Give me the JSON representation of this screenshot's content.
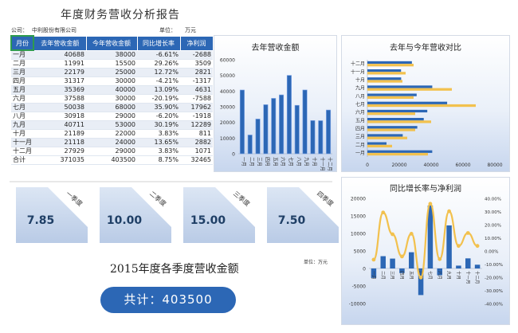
{
  "report": {
    "title": "年度财务营收分析报告",
    "company_label": "公司：",
    "company_name": "中利股份有限公司",
    "unit_label": "单位：",
    "unit_value": "万元"
  },
  "table": {
    "headers": [
      "月份",
      "去年营收金额",
      "今年营收金额",
      "同比增长率",
      "净利润"
    ],
    "rows": [
      [
        "一月",
        "40688",
        "38000",
        "-6.61%",
        "-2688"
      ],
      [
        "二月",
        "11991",
        "15500",
        "29.26%",
        "3509"
      ],
      [
        "三月",
        "22179",
        "25000",
        "12.72%",
        "2821"
      ],
      [
        "四月",
        "31317",
        "30000",
        "-4.21%",
        "-1317"
      ],
      [
        "五月",
        "35369",
        "40000",
        "13.09%",
        "4631"
      ],
      [
        "六月",
        "37588",
        "30000",
        "-20.19%",
        "-7588"
      ],
      [
        "七月",
        "50038",
        "68000",
        "35.90%",
        "17962"
      ],
      [
        "八月",
        "30918",
        "29000",
        "-6.20%",
        "-1918"
      ],
      [
        "九月",
        "40711",
        "53000",
        "30.19%",
        "12289"
      ],
      [
        "十月",
        "21189",
        "22000",
        "3.83%",
        "811"
      ],
      [
        "十一月",
        "21118",
        "24000",
        "13.65%",
        "2882"
      ],
      [
        "十二月",
        "27929",
        "29000",
        "3.83%",
        "1071"
      ]
    ],
    "total": [
      "合计",
      "371035",
      "403500",
      "8.75%",
      "32465"
    ]
  },
  "chart_data": [
    {
      "type": "bar",
      "title": "去年营收金额",
      "categories": [
        "一月",
        "二月",
        "三月",
        "四月",
        "五月",
        "六月",
        "七月",
        "八月",
        "九月",
        "十月",
        "十一月",
        "十二月"
      ],
      "values": [
        40688,
        11991,
        22179,
        31317,
        35369,
        37588,
        50038,
        30918,
        40711,
        21189,
        21118,
        27929
      ],
      "ylim": [
        0,
        60000
      ],
      "yticks": [
        0,
        10000,
        20000,
        30000,
        40000,
        50000,
        60000
      ],
      "color": "#2c67b5"
    },
    {
      "type": "bar",
      "orientation": "horizontal",
      "title": "去年与今年营收对比",
      "categories": [
        "一月",
        "二月",
        "三月",
        "四月",
        "五月",
        "六月",
        "七月",
        "八月",
        "九月",
        "十月",
        "十一月",
        "十二月"
      ],
      "series": [
        {
          "values": [
            40688,
            11991,
            22179,
            31317,
            35369,
            37588,
            50038,
            30918,
            40711,
            21189,
            21118,
            27929
          ],
          "color": "#2c67b5"
        },
        {
          "values": [
            38000,
            15500,
            25000,
            30000,
            40000,
            30000,
            68000,
            29000,
            53000,
            22000,
            24000,
            29000
          ],
          "color": "#f2c14e"
        }
      ],
      "xlim": [
        0,
        80000
      ],
      "xticks": [
        0,
        20000,
        40000,
        60000,
        80000
      ]
    },
    {
      "type": "line",
      "title": "同比增长率与净利润",
      "categories": [
        "一月",
        "二月",
        "三月",
        "四月",
        "五月",
        "六月",
        "七月",
        "八月",
        "九月",
        "十月",
        "十一月",
        "十二月"
      ],
      "series": [
        {
          "chart": "bar",
          "axis": "left",
          "values": [
            -2688,
            3509,
            2821,
            -1317,
            4631,
            -7588,
            17962,
            -1918,
            12289,
            811,
            2882,
            1071
          ],
          "color": "#2c67b5"
        },
        {
          "chart": "line",
          "axis": "right",
          "values": [
            -6.61,
            29.26,
            12.72,
            -4.21,
            13.09,
            -20.19,
            35.9,
            -6.2,
            30.19,
            3.83,
            13.65,
            3.83
          ],
          "color": "#f2c14e"
        }
      ],
      "ylim": [
        -10000,
        20000
      ],
      "yticks": [
        -10000,
        -5000,
        0,
        5000,
        10000,
        15000,
        20000
      ],
      "y2lim": [
        -40,
        40
      ],
      "y2ticks": [
        "-40.00%",
        "-30.00%",
        "-20.00%",
        "-10.00%",
        "0.00%",
        "10.00%",
        "20.00%",
        "30.00%",
        "40.00%"
      ]
    }
  ],
  "quarters": {
    "title": "2015年度各季度营收金额",
    "unit": "单位：万元",
    "cards": [
      {
        "label": "一季度",
        "value": "7.85"
      },
      {
        "label": "二季度",
        "value": "10.00"
      },
      {
        "label": "三季度",
        "value": "15.00"
      },
      {
        "label": "四季度",
        "value": "7.50"
      }
    ],
    "total_text": "共计：403500"
  }
}
